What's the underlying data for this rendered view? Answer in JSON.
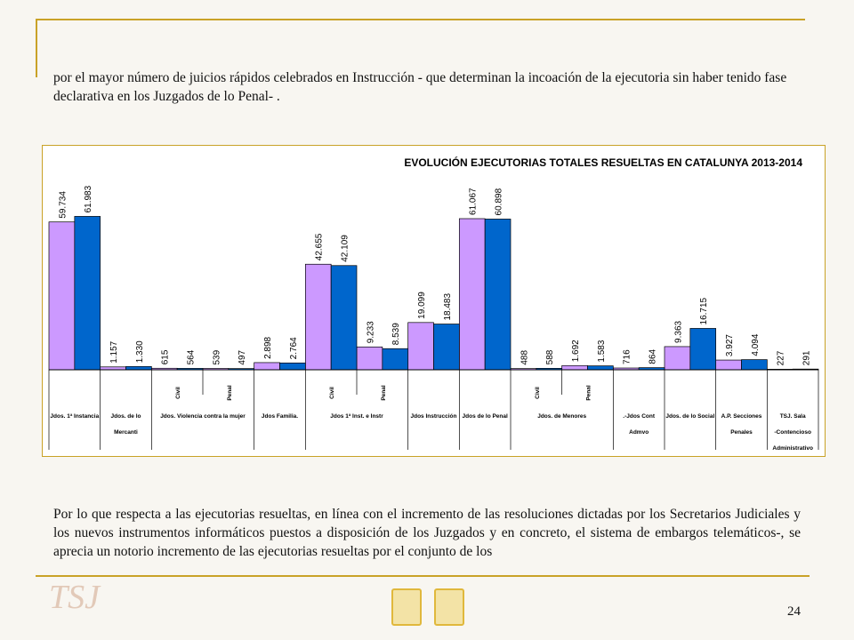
{
  "paragraph_1": "por el mayor número de juicios rápidos celebrados en Instrucción  - que determinan la incoación de la ejecutoria sin haber tenido fase declarativa en los Juzgados de lo Penal- .",
  "chart_data": {
    "type": "bar",
    "title": "EVOLUCIÓN EJECUTORIAS TOTALES RESUELTAS EN CATALUNYA 2013-2014",
    "groups": [
      {
        "label": [
          "Jdos. 1ª Instancia"
        ],
        "categories": [
          null
        ]
      },
      {
        "label": [
          "Jdos. de lo",
          "Mercanti"
        ],
        "categories": [
          null
        ]
      },
      {
        "label": [
          "Jdos. Violencia contra la mujer"
        ],
        "categories": [
          "Civil",
          "Penal"
        ]
      },
      {
        "label": [
          "Jdos Familia."
        ],
        "categories": [
          null
        ]
      },
      {
        "label": [
          "Jdos 1ª Inst. e Instr"
        ],
        "categories": [
          "Civil",
          "Penal"
        ]
      },
      {
        "label": [
          "Jdos Instrucción"
        ],
        "categories": [
          null
        ]
      },
      {
        "label": [
          "Jdos de lo Penal"
        ],
        "categories": [
          null
        ]
      },
      {
        "label": [
          "Jdos. de Menores"
        ],
        "categories": [
          "Civil",
          "Penal"
        ]
      },
      {
        "label": [
          ".-Jdos Cont",
          "Admvo"
        ],
        "categories": [
          null
        ]
      },
      {
        "label": [
          "Jdos. de lo Social"
        ],
        "categories": [
          null
        ]
      },
      {
        "label": [
          "A.P. Secciones",
          "Penales"
        ],
        "categories": [
          null
        ]
      },
      {
        "label": [
          "TSJ. Sala",
          "-Contencioso",
          "Administrativo"
        ],
        "categories": [
          null
        ]
      }
    ],
    "series": [
      {
        "color": "#cc99ff",
        "values": [
          59734,
          1157,
          615,
          539,
          2898,
          42655,
          9233,
          19099,
          61067,
          488,
          1692,
          716,
          9363,
          3927,
          227
        ],
        "value_labels": [
          "59.734",
          "1.157",
          "615",
          "539",
          "2.898",
          "42.655",
          "9.233",
          "19.099",
          "61.067",
          "488",
          "1.692",
          "716",
          "9.363",
          "3.927",
          "227"
        ]
      },
      {
        "color": "#0066cc",
        "values": [
          61983,
          1330,
          564,
          497,
          2764,
          42109,
          8539,
          18483,
          60898,
          588,
          1583,
          864,
          16715,
          4094,
          291
        ],
        "value_labels": [
          "61.983",
          "1.330",
          "564",
          "497",
          "2.764",
          "42.109",
          "8.539",
          "18.483",
          "60.898",
          "588",
          "1.583",
          "864",
          "16.715",
          "4.094",
          "291"
        ]
      }
    ],
    "ylim": [
      0,
      88000
    ]
  },
  "paragraph_2": "Por lo que respecta a las ejecutorias resueltas, en línea con el incremento de las resoluciones dictadas por los Secretarios Judiciales y los nuevos instrumentos informáticos puestos a disposición de los Juzgados y en concreto, el sistema de embargos telemáticos-, se aprecia un notorio incremento de las ejecutorias resueltas por el conjunto de los",
  "watermark": "TSJ",
  "page_number": "24"
}
